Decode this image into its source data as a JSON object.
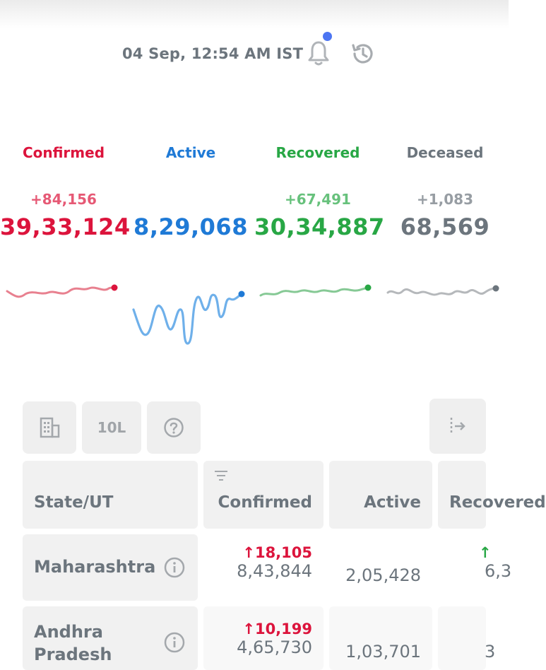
{
  "header": {
    "timestamp": "04 Sep, 12:54 AM IST",
    "bell_icon": "bell-icon",
    "history_icon": "history-icon"
  },
  "stats": [
    {
      "label": "Confirmed",
      "delta": "+84,156",
      "total": "39,33,124",
      "color": "#dc143c"
    },
    {
      "label": "Active",
      "delta": "",
      "total": "8,29,068",
      "color": "#1f7ad6"
    },
    {
      "label": "Recovered",
      "delta": "+67,491",
      "total": "30,34,887",
      "color": "#28a745"
    },
    {
      "label": "Deceased",
      "delta": "+1,083",
      "total": "68,569",
      "color": "#6c757d"
    }
  ],
  "toolbar": {
    "district_icon": "building-icon",
    "per_toggle": "10L",
    "help_icon": "help-icon",
    "expand_icon": "expand-icon"
  },
  "table": {
    "headers": [
      "State/UT",
      "Confirmed",
      "Active",
      "Recovered"
    ],
    "sort_icon": "sort-icon",
    "rows": [
      {
        "state": "Maharashtra",
        "confirmed_delta": "↑18,105",
        "confirmed": "8,43,844",
        "active": "2,05,428",
        "recovered_delta": "↑",
        "recovered": "6,3"
      },
      {
        "state": "Andhra Pradesh",
        "confirmed_delta": "↑10,199",
        "confirmed": "4,65,730",
        "active": "1,03,701",
        "recovered_delta": "",
        "recovered": "3"
      }
    ]
  }
}
